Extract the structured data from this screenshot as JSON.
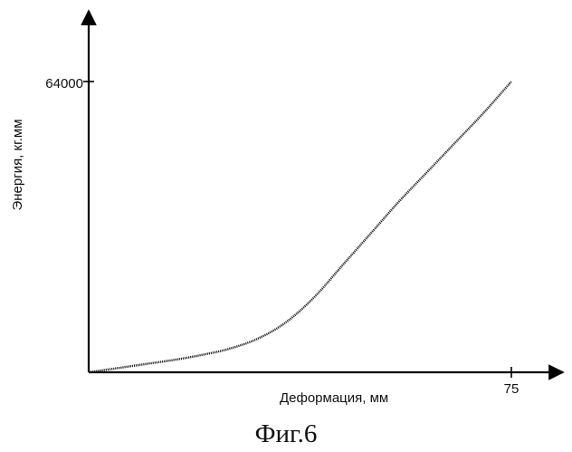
{
  "chart_data": {
    "type": "line",
    "xlabel": "Деформация, мм",
    "ylabel": "Энергия, кг.мм",
    "x_tick_labels": [
      "75"
    ],
    "y_tick_labels": [
      "64000"
    ],
    "xlim": [
      0,
      75
    ],
    "ylim": [
      0,
      64000
    ],
    "series": [
      {
        "x": [
          0,
          5,
          10,
          15,
          20,
          25,
          30,
          35,
          40,
          45,
          50,
          55,
          60,
          65,
          70,
          75
        ],
        "y": [
          0,
          900,
          1800,
          2700,
          3800,
          5200,
          7400,
          11000,
          16500,
          23500,
          30500,
          37500,
          44000,
          50500,
          57000,
          64000
        ]
      }
    ]
  },
  "caption": "Фиг.6"
}
